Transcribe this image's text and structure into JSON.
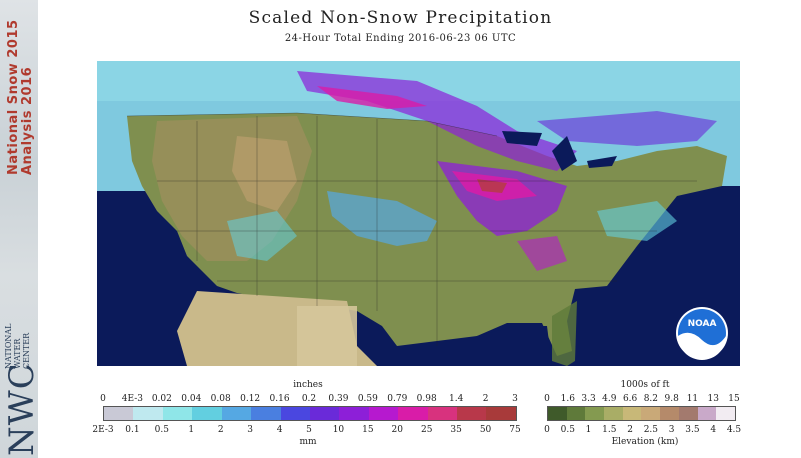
{
  "sidebar": {
    "line1": "National Snow",
    "line2": "Analysis",
    "year1": "2015",
    "year2": "2016",
    "org_short": "NWC",
    "org_line1": "NATIONAL",
    "org_line2": "WATER",
    "org_line3": "CENTER"
  },
  "header": {
    "title": "Scaled Non-Snow Precipitation",
    "subtitle": "24-Hour Total Ending 2016-06-23 06 UTC"
  },
  "logo": {
    "text": "NOAA"
  },
  "precip_legend": {
    "top_unit": "inches",
    "bottom_unit": "mm",
    "top_ticks": [
      "0",
      "4E-3",
      "0.02",
      "0.04",
      "0.08",
      "0.12",
      "0.16",
      "0.2",
      "0.39",
      "0.59",
      "0.79",
      "0.98",
      "1.4",
      "2",
      "3"
    ],
    "bottom_ticks": [
      "2E-3",
      "0.1",
      "0.5",
      "1",
      "2",
      "3",
      "4",
      "5",
      "10",
      "15",
      "20",
      "25",
      "35",
      "50",
      "75"
    ],
    "colors": [
      "#c9c9d6",
      "#bfe9ef",
      "#8fe6e8",
      "#62cfe0",
      "#55a8e3",
      "#4a7fe0",
      "#4a47e0",
      "#6a2ad9",
      "#8d1fd8",
      "#b619cf",
      "#d91ca8",
      "#d8327e",
      "#b8384a",
      "#a83a3a"
    ]
  },
  "elev_legend": {
    "top_unit": "1000s of ft",
    "bottom_unit": "Elevation (km)",
    "top_ticks": [
      "0",
      "1.6",
      "3.3",
      "4.9",
      "6.6",
      "8.2",
      "9.8",
      "11",
      "13",
      "15"
    ],
    "bottom_ticks": [
      "0",
      "0.5",
      "1",
      "1.5",
      "2",
      "2.5",
      "3",
      "3.5",
      "4",
      "4.5"
    ],
    "colors": [
      "#3f5a2a",
      "#5f7a3a",
      "#849a50",
      "#a9ad66",
      "#c8b878",
      "#c9a978",
      "#b58a6a",
      "#a37a6e",
      "#c9a9c9",
      "#f2ecf2"
    ]
  }
}
